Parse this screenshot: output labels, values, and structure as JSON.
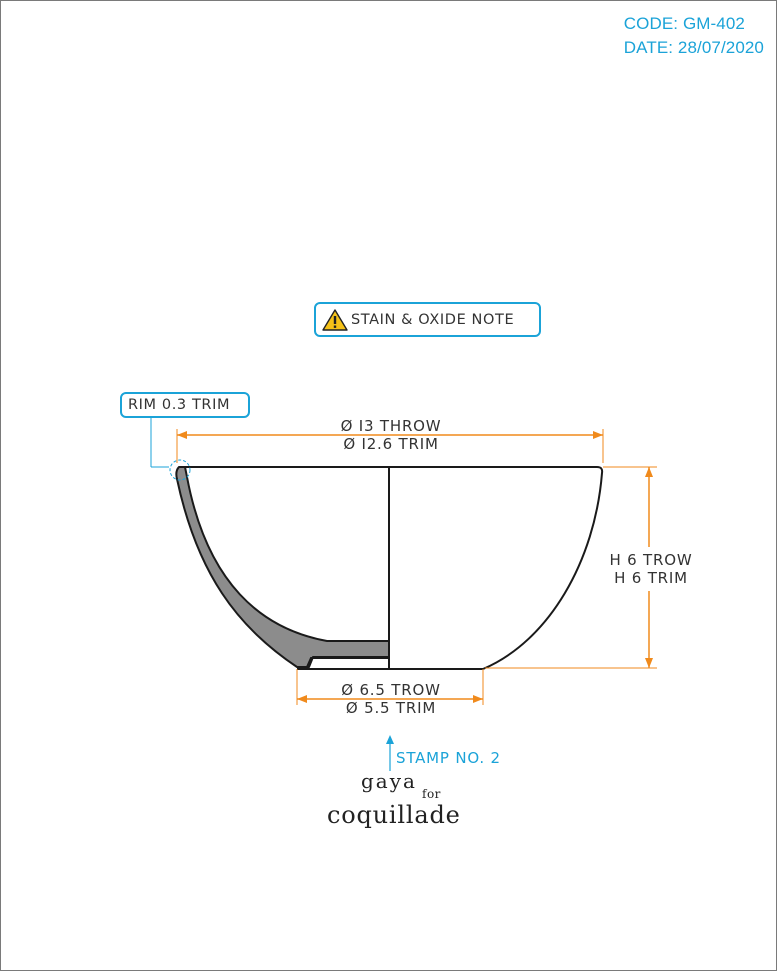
{
  "header": {
    "code": "CODE: GM-402",
    "date": "DATE: 28/07/2020"
  },
  "note": {
    "label": "STAIN & OXIDE NOTE",
    "icon": "warning-icon"
  },
  "rim_callout": {
    "label": "RIM 0.3 TRIM"
  },
  "dimensions": {
    "top": {
      "throw": "Ø I3 THROW",
      "trim": "Ø I2.6 TRIM"
    },
    "bottom": {
      "throw": "Ø 6.5 TROW",
      "trim": "Ø 5.5 TRIM"
    },
    "height": {
      "throw": "H 6 TROW",
      "trim": "H 6 TRIM"
    }
  },
  "stamp": {
    "label": "STAMP NO. 2",
    "brand_line1": "gaya",
    "brand_for": "for",
    "brand_line2": "coquillade"
  },
  "colors": {
    "accent": "#1ba3d8",
    "dimension": "#f08a1c",
    "line": "#1a1a1a",
    "wall": "#8c8c8c"
  }
}
